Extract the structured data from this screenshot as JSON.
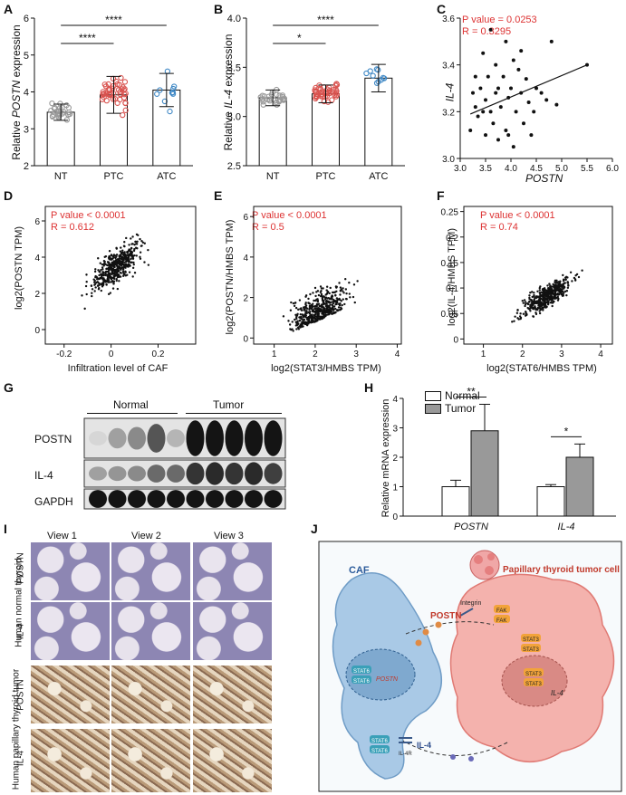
{
  "panels": {
    "A": {
      "label": "A",
      "ylabel_pre": "Relative ",
      "ylabel_gene": "POSTN",
      "ylabel_post": " expression",
      "sig1": "****",
      "sig2": "****"
    },
    "B": {
      "label": "B",
      "ylabel_pre": "Relative ",
      "ylabel_gene": "IL-4",
      "ylabel_post": " expression",
      "sig1": "*",
      "sig2": "****"
    },
    "C": {
      "label": "C",
      "stat_p": "P value = 0.0253",
      "stat_r": "R = 0.3295",
      "xlabel": "POSTN",
      "ylabel": "IL-4"
    },
    "D": {
      "label": "D",
      "stat_p": "P value < 0.0001",
      "stat_r": "R = 0.612",
      "xlabel": "Infiltration level of CAF",
      "ylabel": "log2(POSTN TPM)"
    },
    "E": {
      "label": "E",
      "stat_p": "P value < 0.0001",
      "stat_r": "R = 0.5",
      "xlabel": "log2(STAT3/HMBS TPM)",
      "ylabel": "log2(POSTN/HMBS TPM)"
    },
    "F": {
      "label": "F",
      "stat_p": "P value < 0.0001",
      "stat_r": "R = 0.74",
      "xlabel": "log2(STAT6/HMBS TPM)",
      "ylabel": "log2(IL-4/HMBS TPM)"
    },
    "G": {
      "label": "G",
      "group_normal": "Normal",
      "group_tumor": "Tumor",
      "bands": [
        "POSTN",
        "IL-4",
        "GAPDH"
      ]
    },
    "H": {
      "label": "H",
      "ylabel": "Relative mRNA expression",
      "legend_normal": "Normal",
      "legend_tumor": "Tumor",
      "sig1": "**",
      "sig2": "*"
    },
    "I": {
      "label": "I",
      "views": [
        "View 1",
        "View 2",
        "View 3"
      ],
      "group_normal": "Human normal thyroid",
      "group_tumor": "Human papillary thyroid tumor",
      "rows": [
        "POSTN",
        "IL-4",
        "POSTN",
        "IL-4"
      ]
    },
    "J": {
      "label": "J",
      "caf": "CAF",
      "tumor_cell": "Papillary thyroid tumor cell",
      "postn": "POSTN",
      "integrin": "Integrin",
      "fak": "FAK",
      "stat3": "STAT3",
      "stat6": "STAT6",
      "il4": "IL-4",
      "il4r": "IL-4R",
      "gene_postn": "POSTN",
      "gene_il4": "IL-4"
    }
  },
  "chart_data": [
    {
      "id": "A",
      "type": "scatter",
      "categories": [
        "NT",
        "PTC",
        "ATC"
      ],
      "means": [
        3.45,
        3.92,
        4.05
      ],
      "sd": [
        0.22,
        0.5,
        0.45
      ],
      "ylim": [
        2,
        6
      ],
      "yticks": [
        2,
        3,
        4,
        5,
        6
      ],
      "colors": [
        "#999999",
        "#d9534f",
        "#3f88c5"
      ],
      "comparisons": [
        [
          "NT",
          "PTC",
          "****"
        ],
        [
          "NT",
          "ATC",
          "****"
        ]
      ]
    },
    {
      "id": "B",
      "type": "scatter",
      "categories": [
        "NT",
        "PTC",
        "ATC"
      ],
      "means": [
        3.19,
        3.23,
        3.39
      ],
      "sd": [
        0.08,
        0.09,
        0.14
      ],
      "ylim": [
        2.5,
        4.0
      ],
      "yticks": [
        2.5,
        3.0,
        3.5,
        4.0
      ],
      "colors": [
        "#999999",
        "#d9534f",
        "#3f88c5"
      ],
      "comparisons": [
        [
          "NT",
          "PTC",
          "*"
        ],
        [
          "NT",
          "ATC",
          "****"
        ]
      ]
    },
    {
      "id": "C",
      "type": "scatter",
      "xlim": [
        3.0,
        6.0
      ],
      "ylim": [
        3.0,
        3.6
      ],
      "xticks": [
        3.0,
        3.5,
        4.0,
        4.5,
        5.0,
        5.5,
        6.0
      ],
      "yticks": [
        3.0,
        3.2,
        3.4,
        3.6
      ],
      "points": [
        [
          3.2,
          3.12
        ],
        [
          3.25,
          3.28
        ],
        [
          3.3,
          3.22
        ],
        [
          3.35,
          3.18
        ],
        [
          3.4,
          3.3
        ],
        [
          3.45,
          3.45
        ],
        [
          3.5,
          3.1
        ],
        [
          3.5,
          3.25
        ],
        [
          3.55,
          3.35
        ],
        [
          3.6,
          3.2
        ],
        [
          3.6,
          3.55
        ],
        [
          3.65,
          3.15
        ],
        [
          3.7,
          3.28
        ],
        [
          3.7,
          3.4
        ],
        [
          3.75,
          3.08
        ],
        [
          3.8,
          3.22
        ],
        [
          3.85,
          3.35
        ],
        [
          3.9,
          3.12
        ],
        [
          3.9,
          3.5
        ],
        [
          3.95,
          3.26
        ],
        [
          4.0,
          3.3
        ],
        [
          4.05,
          3.05
        ],
        [
          4.1,
          3.2
        ],
        [
          4.15,
          3.38
        ],
        [
          4.2,
          3.28
        ],
        [
          4.2,
          3.46
        ],
        [
          4.25,
          3.15
        ],
        [
          4.3,
          3.34
        ],
        [
          4.35,
          3.24
        ],
        [
          4.4,
          3.1
        ],
        [
          4.5,
          3.3
        ],
        [
          4.6,
          3.28
        ],
        [
          4.7,
          3.25
        ],
        [
          4.8,
          3.5
        ],
        [
          4.9,
          3.23
        ],
        [
          5.5,
          3.4
        ],
        [
          3.3,
          3.35
        ],
        [
          3.45,
          3.2
        ],
        [
          3.75,
          3.3
        ],
        [
          4.05,
          3.42
        ],
        [
          4.45,
          3.2
        ],
        [
          3.95,
          3.1
        ]
      ],
      "fit": [
        [
          3.2,
          3.19
        ],
        [
          5.5,
          3.4
        ]
      ]
    },
    {
      "id": "D",
      "type": "scatter",
      "xlim": [
        -0.28,
        0.36
      ],
      "ylim": [
        -0.8,
        6.8
      ],
      "xticks": [
        -0.2,
        0,
        0.2
      ],
      "yticks": [
        0,
        2,
        4,
        6
      ],
      "r": 0.612,
      "seed": 11
    },
    {
      "id": "E",
      "type": "scatter",
      "xlim": [
        0.5,
        4.1
      ],
      "ylim": [
        -0.3,
        6.5
      ],
      "xticks": [
        1,
        2,
        3,
        4
      ],
      "yticks": [
        0,
        2,
        4,
        6
      ],
      "r": 0.5,
      "seed": 23
    },
    {
      "id": "F",
      "type": "scatter",
      "xlim": [
        0.5,
        4.3
      ],
      "ylim": [
        -0.01,
        0.26
      ],
      "xticks": [
        1,
        2,
        3,
        4
      ],
      "yticks": [
        0,
        0.05,
        0.1,
        0.15,
        0.2,
        0.25
      ],
      "r": 0.74,
      "seed": 37
    },
    {
      "id": "H",
      "type": "bar",
      "categories": [
        "POSTN",
        "IL-4"
      ],
      "series": [
        {
          "name": "Normal",
          "values": [
            1.0,
            1.0
          ],
          "err": [
            0.22,
            0.07
          ],
          "color": "#ffffff"
        },
        {
          "name": "Tumor",
          "values": [
            2.9,
            2.0
          ],
          "err": [
            0.9,
            0.45
          ],
          "color": "#999999"
        }
      ],
      "ylim": [
        0,
        4
      ],
      "yticks": [
        0,
        1,
        2,
        3,
        4
      ],
      "sig": [
        "**",
        "*"
      ]
    }
  ]
}
